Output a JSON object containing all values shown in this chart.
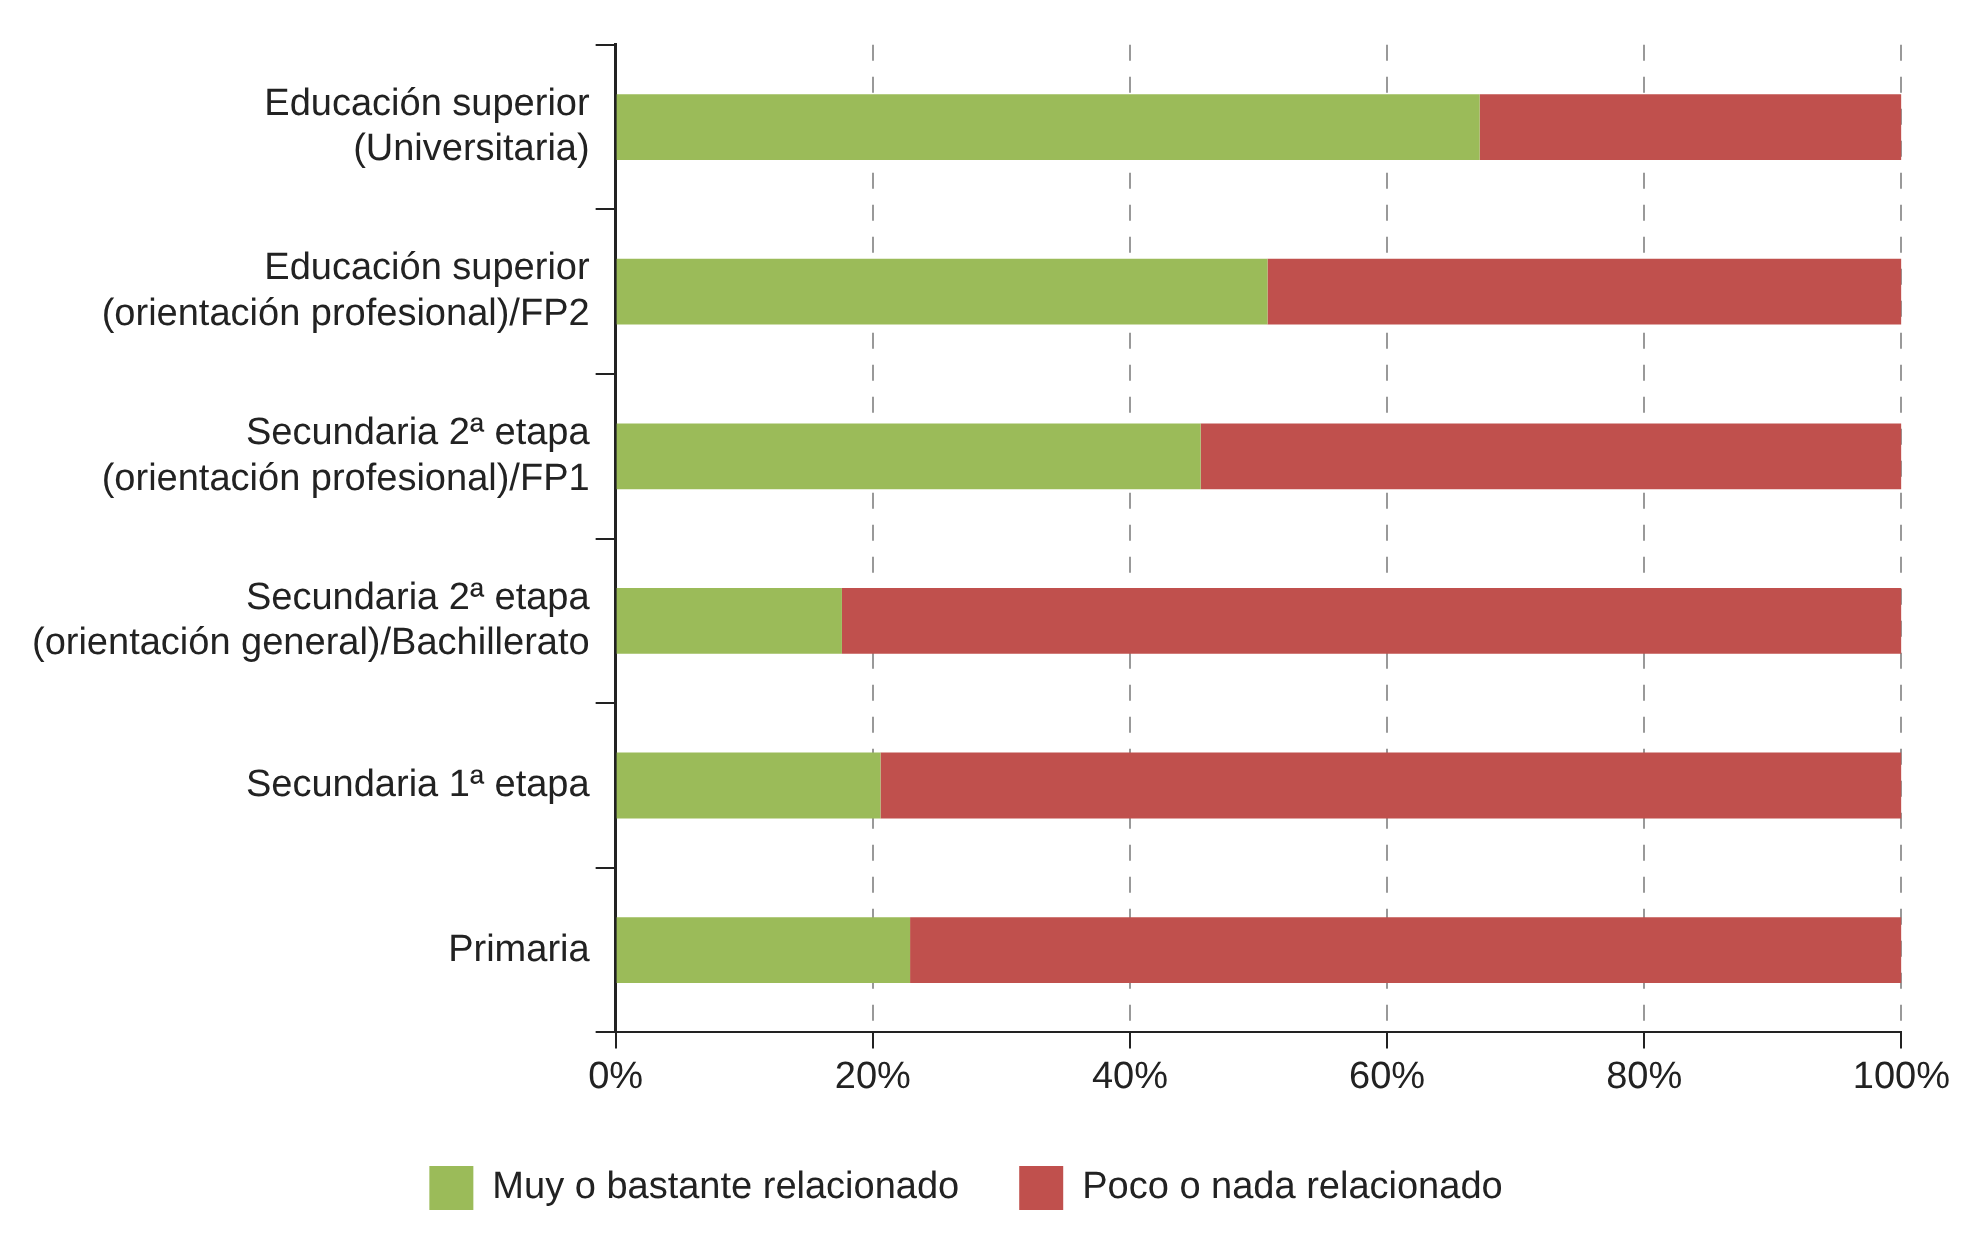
{
  "chart_data": {
    "type": "bar",
    "orientation": "horizontal",
    "stacked": true,
    "categories": [
      "Educación superior\n(Universitaria)",
      "Educación superior\n(orientación profesional)/FP2",
      "Secundaria 2ª etapa\n(orientación profesional)/FP1",
      "Secundaria 2ª etapa\n(orientación general)/Bachillerato",
      "Secundaria 1ª etapa",
      "Primaria"
    ],
    "series": [
      {
        "name": "Muy o bastante relacionado",
        "color": "#9bbb59",
        "values": [
          67.2,
          50.7,
          45.5,
          17.6,
          20.6,
          22.9
        ]
      },
      {
        "name": "Poco o nada relacionado",
        "color": "#c0504d",
        "values": [
          32.8,
          49.3,
          54.5,
          82.4,
          79.4,
          77.1
        ]
      }
    ],
    "xlim": [
      0,
      100
    ],
    "xticks": [
      {
        "value": 0,
        "label": "0%"
      },
      {
        "value": 20,
        "label": "20%"
      },
      {
        "value": 40,
        "label": "40%"
      },
      {
        "value": 60,
        "label": "60%"
      },
      {
        "value": 80,
        "label": "80%"
      },
      {
        "value": 100,
        "label": "100%"
      }
    ],
    "grid": "x",
    "legend": "bottom"
  }
}
